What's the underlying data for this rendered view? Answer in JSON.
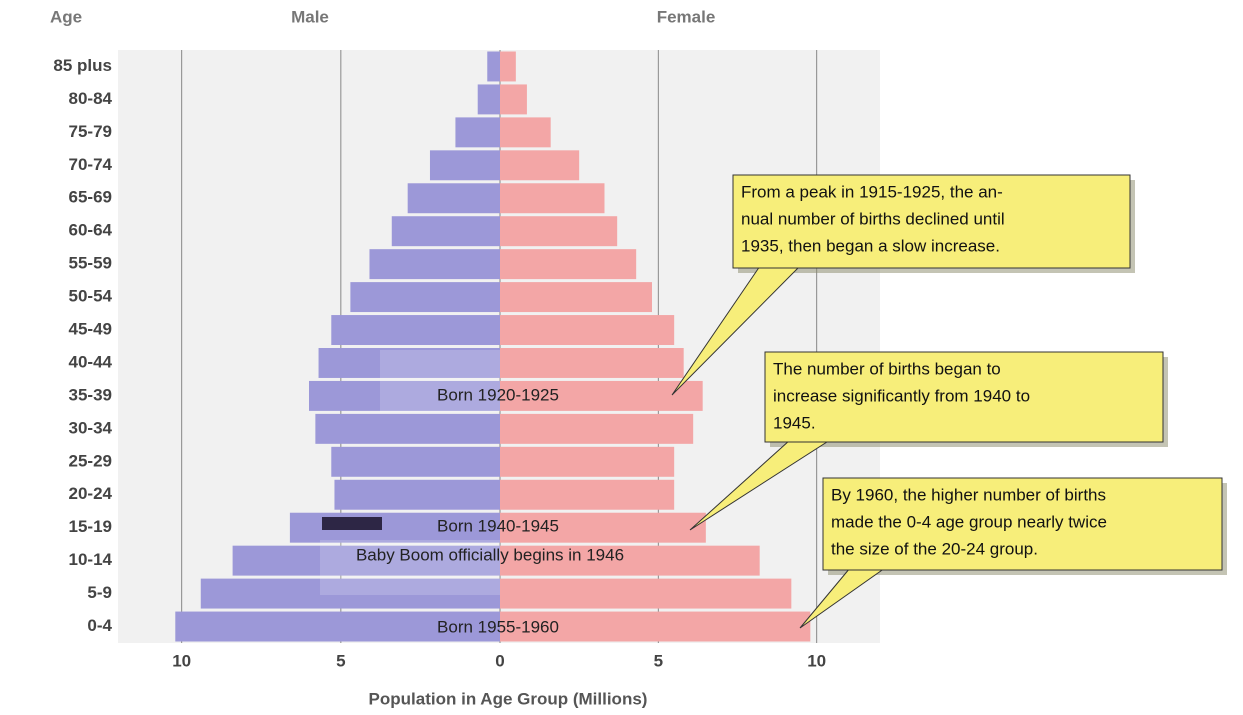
{
  "chart_data": {
    "type": "pyramid",
    "ylabel": "Age",
    "xlabel": "Population in Age Group (Millions)",
    "categories": [
      "85 plus",
      "80-84",
      "75-79",
      "70-74",
      "65-69",
      "60-64",
      "55-59",
      "50-54",
      "45-49",
      "40-44",
      "35-39",
      "30-34",
      "25-29",
      "20-24",
      "15-19",
      "10-14",
      "5-9",
      "0-4"
    ],
    "series": [
      {
        "name": "Male",
        "color": "#9c98d8",
        "values": [
          0.4,
          0.7,
          1.4,
          2.2,
          2.9,
          3.4,
          4.1,
          4.7,
          5.3,
          5.7,
          6.0,
          5.8,
          5.3,
          5.2,
          6.6,
          8.4,
          9.4,
          10.2
        ]
      },
      {
        "name": "Female",
        "color": "#f3a6a6",
        "values": [
          0.5,
          0.85,
          1.6,
          2.5,
          3.3,
          3.7,
          4.3,
          4.8,
          5.5,
          5.8,
          6.4,
          6.1,
          5.5,
          5.5,
          6.5,
          8.2,
          9.2,
          9.8
        ]
      }
    ],
    "xlim": [
      0,
      12
    ],
    "xticks": [
      0,
      5,
      10
    ],
    "grid": true,
    "bar_labels": [
      "Born 1920-1925",
      "Born 1940-1945",
      "Baby Boom officially begins in 1946",
      "Born 1955-1960"
    ],
    "callouts": [
      [
        "From a peak in 1915-1925, the an-",
        "nual number of births declined until",
        "1935, then began a slow increase."
      ],
      [
        "The number of births began to",
        "increase significantly from 1940 to",
        "1945."
      ],
      [
        "By 1960, the higher number of births",
        "made the 0-4 age group nearly twice",
        "the size of the 20-24 group."
      ]
    ]
  }
}
